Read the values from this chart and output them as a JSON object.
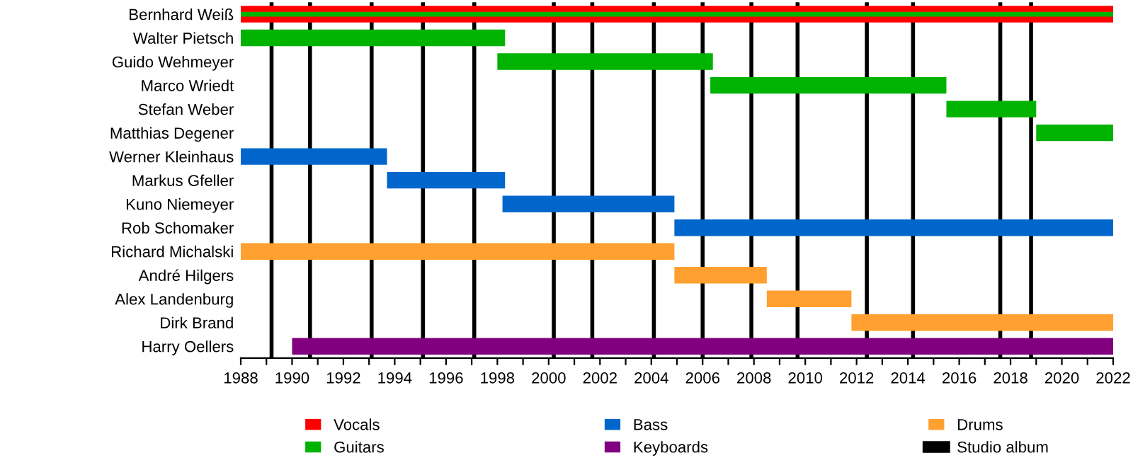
{
  "chart_data": {
    "type": "bar",
    "orientation": "horizontal",
    "categories": [
      "Bernhard Weiß",
      "Walter Pietsch",
      "Guido Wehmeyer",
      "Marco Wriedt",
      "Stefan Weber",
      "Matthias Degener",
      "Werner Kleinhaus",
      "Markus Gfeller",
      "Kuno Niemeyer",
      "Rob Schomaker",
      "Richard Michalski",
      "André Hilgers",
      "Alex Landenburg",
      "Dirk Brand",
      "Harry Oellers"
    ],
    "series": [
      {
        "name": "Vocals",
        "color": "#ff0000",
        "base": [
          1988,
          null,
          null,
          null,
          null,
          null,
          null,
          null,
          null,
          null,
          null,
          null,
          null,
          null,
          null
        ],
        "values": [
          34,
          null,
          null,
          null,
          null,
          null,
          null,
          null,
          null,
          null,
          null,
          null,
          null,
          null,
          null
        ]
      },
      {
        "name": "Guitars",
        "color": "#00b300",
        "base": [
          1988,
          1988,
          1998.0,
          2006.3,
          2015.5,
          2019.0,
          null,
          null,
          null,
          null,
          null,
          null,
          null,
          null,
          null
        ],
        "values": [
          34,
          10.3,
          8.4,
          9.2,
          3.5,
          3.0,
          null,
          null,
          null,
          null,
          null,
          null,
          null,
          null,
          null
        ]
      },
      {
        "name": "Bass",
        "color": "#0066cc",
        "base": [
          null,
          null,
          null,
          null,
          null,
          null,
          1988,
          1993.7,
          1998.2,
          2004.9,
          null,
          null,
          null,
          null,
          null
        ],
        "values": [
          null,
          null,
          null,
          null,
          null,
          null,
          5.7,
          4.6,
          6.7,
          17.1,
          null,
          null,
          null,
          null,
          null
        ]
      },
      {
        "name": "Keyboards",
        "color": "#800080",
        "base": [
          null,
          null,
          null,
          null,
          null,
          null,
          null,
          null,
          null,
          null,
          null,
          null,
          null,
          null,
          1990.0
        ],
        "values": [
          null,
          null,
          null,
          null,
          null,
          null,
          null,
          null,
          null,
          null,
          null,
          null,
          null,
          null,
          32.0
        ]
      },
      {
        "name": "Drums",
        "color": "#ffa030",
        "base": [
          null,
          null,
          null,
          null,
          null,
          null,
          null,
          null,
          null,
          null,
          1988,
          2004.9,
          2008.5,
          2011.8,
          null
        ],
        "values": [
          null,
          null,
          null,
          null,
          null,
          null,
          null,
          null,
          null,
          null,
          16.9,
          3.6,
          3.3,
          10.2,
          null
        ]
      }
    ],
    "ref_lines": [
      {
        "axis": "x",
        "value": 1989.2,
        "label": "Studio album",
        "color": "#000000"
      },
      {
        "axis": "x",
        "value": 1990.7,
        "color": "#000000"
      },
      {
        "axis": "x",
        "value": 1993.1,
        "color": "#000000"
      },
      {
        "axis": "x",
        "value": 1995.1,
        "color": "#000000"
      },
      {
        "axis": "x",
        "value": 1997.1,
        "color": "#000000"
      },
      {
        "axis": "x",
        "value": 2000.2,
        "color": "#000000"
      },
      {
        "axis": "x",
        "value": 2001.7,
        "color": "#000000"
      },
      {
        "axis": "x",
        "value": 2004.1,
        "color": "#000000"
      },
      {
        "axis": "x",
        "value": 2006.0,
        "color": "#000000"
      },
      {
        "axis": "x",
        "value": 2007.9,
        "color": "#000000"
      },
      {
        "axis": "x",
        "value": 2009.7,
        "color": "#000000"
      },
      {
        "axis": "x",
        "value": 2012.4,
        "color": "#000000"
      },
      {
        "axis": "x",
        "value": 2014.2,
        "color": "#000000"
      },
      {
        "axis": "x",
        "value": 2017.6,
        "color": "#000000"
      },
      {
        "axis": "x",
        "value": 2018.8,
        "color": "#000000"
      }
    ],
    "xlim": [
      1988,
      2022
    ],
    "xticks": [
      1988,
      {
        "value": 1989,
        "label": null
      },
      1990,
      {
        "value": 1991,
        "label": null
      },
      1992,
      {
        "value": 1993,
        "label": null
      },
      1994,
      {
        "value": 1995,
        "label": null
      },
      1996,
      {
        "value": 1997,
        "label": null
      },
      1998,
      {
        "value": 1999,
        "label": null
      },
      2000,
      {
        "value": 2001,
        "label": null
      },
      2002,
      {
        "value": 2003,
        "label": null
      },
      2004,
      {
        "value": 2005,
        "label": null
      },
      2006,
      {
        "value": 2007,
        "label": null
      },
      2008,
      {
        "value": 2009,
        "label": null
      },
      2010,
      {
        "value": 2011,
        "label": null
      },
      2012,
      {
        "value": 2013,
        "label": null
      },
      2014,
      {
        "value": 2015,
        "label": null
      },
      2016,
      {
        "value": 2017,
        "label": null
      },
      2018,
      {
        "value": 2019,
        "label": null
      },
      2020,
      {
        "value": 2021,
        "label": null
      },
      2022
    ],
    "legend": "bottom",
    "grid": false
  }
}
